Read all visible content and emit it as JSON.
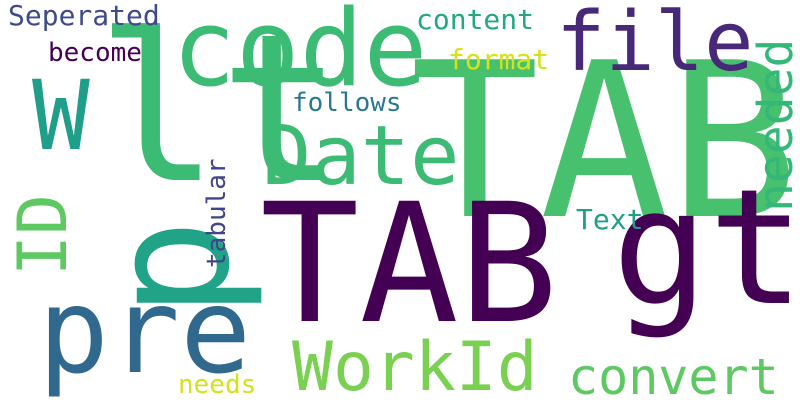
{
  "word_cloud": {
    "words": [
      {
        "text": "TAB",
        "color": "#48c16e"
      },
      {
        "text": "lt",
        "color": "#3cbb75"
      },
      {
        "text": "TAB",
        "color": "#440154"
      },
      {
        "text": "gt",
        "color": "#440154"
      },
      {
        "text": "code",
        "color": "#3cbb75"
      },
      {
        "text": "p",
        "color": "#20a386"
      },
      {
        "text": "pre",
        "color": "#31688e"
      },
      {
        "text": "W",
        "color": "#1f9e89"
      },
      {
        "text": "file",
        "color": "#482878"
      },
      {
        "text": "Date",
        "color": "#3cbb75"
      },
      {
        "text": "WorkId",
        "color": "#7ad151"
      },
      {
        "text": "convert",
        "color": "#5ec962"
      },
      {
        "text": "needed",
        "color": "#35b779"
      },
      {
        "text": "ID",
        "color": "#5ec962"
      },
      {
        "text": "content",
        "color": "#22a884"
      },
      {
        "text": "Seperated",
        "color": "#3e4a89"
      },
      {
        "text": "become",
        "color": "#440154"
      },
      {
        "text": "format",
        "color": "#d8e219"
      },
      {
        "text": "follows",
        "color": "#2a788e"
      },
      {
        "text": "tabular",
        "color": "#414487"
      },
      {
        "text": "Text",
        "color": "#1f9e89"
      },
      {
        "text": "needs",
        "color": "#d2e21b"
      }
    ]
  }
}
